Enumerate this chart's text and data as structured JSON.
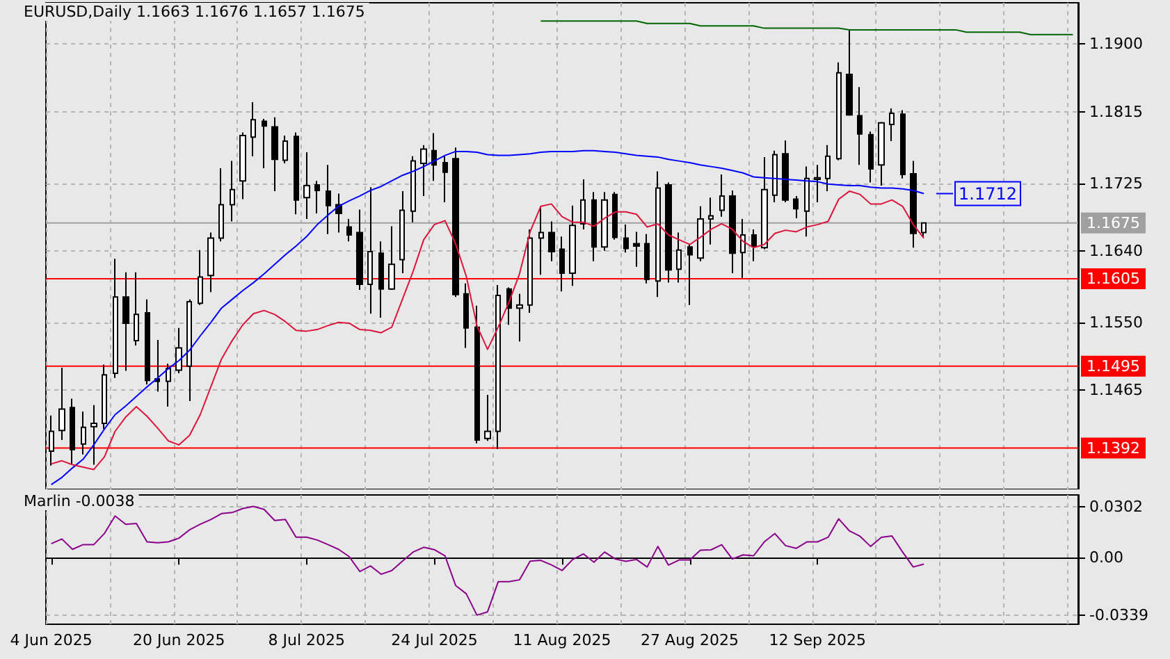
{
  "chart_data": [
    {
      "type": "candlestick",
      "title": "EURUSD,Daily 1.1663 1.1676 1.1657 1.1675",
      "categories": [
        null,
        null,
        null,
        null,
        null,
        null,
        null,
        null,
        null,
        null,
        null,
        null,
        null,
        null,
        null,
        null,
        null,
        null,
        null,
        null,
        null,
        null,
        null,
        null,
        null,
        null,
        null,
        null,
        null,
        null,
        null,
        null,
        null,
        null,
        null,
        null,
        null,
        null,
        null,
        null,
        null,
        null,
        null,
        null,
        null,
        null,
        null,
        null,
        null,
        null,
        null,
        null,
        null,
        null,
        null,
        null,
        null,
        null,
        null,
        null,
        null,
        null,
        null,
        null,
        null,
        null,
        null,
        null,
        null,
        null,
        null,
        null,
        null,
        null,
        null,
        null,
        null,
        null,
        null,
        null,
        null,
        null,
        null,
        null,
        null,
        null,
        null,
        null,
        null,
        null,
        null,
        null,
        null,
        null,
        null,
        null,
        null
      ],
      "ohlc": [
        [
          1.1388,
          1.1433,
          1.137,
          1.1413
        ],
        [
          1.1414,
          1.1493,
          1.1402,
          1.1441
        ],
        [
          1.1443,
          1.1454,
          1.1372,
          1.139
        ],
        [
          1.1397,
          1.1438,
          1.1384,
          1.1418
        ],
        [
          1.1419,
          1.1446,
          1.1371,
          1.1423
        ],
        [
          1.1423,
          1.1497,
          1.1416,
          1.1484
        ],
        [
          1.1486,
          1.163,
          1.148,
          1.1582
        ],
        [
          1.1582,
          1.1613,
          1.1489,
          1.1549
        ],
        [
          1.1527,
          1.1613,
          1.1521,
          1.156
        ],
        [
          1.1562,
          1.1579,
          1.1472,
          1.1477
        ],
        [
          1.1479,
          1.1528,
          1.1463,
          1.1476
        ],
        [
          1.1476,
          1.1498,
          1.1444,
          1.1492
        ],
        [
          1.149,
          1.1543,
          1.1486,
          1.1518
        ],
        [
          1.1495,
          1.1579,
          1.1451,
          1.1576
        ],
        [
          1.1574,
          1.1641,
          1.1572,
          1.1607
        ],
        [
          1.1609,
          1.1663,
          1.1588,
          1.1656
        ],
        [
          1.1656,
          1.1744,
          1.1652,
          1.1698
        ],
        [
          1.1698,
          1.1753,
          1.1677,
          1.1717
        ],
        [
          1.1728,
          1.1789,
          1.1705,
          1.1785
        ],
        [
          1.1783,
          1.1827,
          1.1759,
          1.1805
        ],
        [
          1.1803,
          1.1806,
          1.1744,
          1.1797
        ],
        [
          1.1796,
          1.1808,
          1.1715,
          1.1755
        ],
        [
          1.1754,
          1.1785,
          1.175,
          1.1778
        ],
        [
          1.1784,
          1.1789,
          1.1686,
          1.1704
        ],
        [
          1.1707,
          1.1764,
          1.168,
          1.1722
        ],
        [
          1.1723,
          1.1728,
          1.1687,
          1.1716
        ],
        [
          1.1715,
          1.1748,
          1.1661,
          1.1697
        ],
        [
          1.1698,
          1.1712,
          1.1663,
          1.1687
        ],
        [
          1.167,
          1.168,
          1.1652,
          1.166
        ],
        [
          1.1663,
          1.1692,
          1.1591,
          1.1598
        ],
        [
          1.1598,
          1.172,
          1.1561,
          1.1639
        ],
        [
          1.1637,
          1.1652,
          1.1556,
          1.1592
        ],
        [
          1.1592,
          1.1671,
          1.1591,
          1.1623
        ],
        [
          1.1629,
          1.1715,
          1.1612,
          1.1691
        ],
        [
          1.169,
          1.1759,
          1.1676,
          1.1753
        ],
        [
          1.175,
          1.1773,
          1.1709,
          1.1768
        ],
        [
          1.1766,
          1.1788,
          1.1728,
          1.1748
        ],
        [
          1.1751,
          1.1759,
          1.1701,
          1.1739
        ],
        [
          1.1756,
          1.177,
          1.1582,
          1.1585
        ],
        [
          1.1586,
          1.1599,
          1.1518,
          1.1543
        ],
        [
          1.1544,
          1.1571,
          1.1398,
          1.1402
        ],
        [
          1.1404,
          1.1459,
          1.1401,
          1.1413
        ],
        [
          1.1413,
          1.1597,
          1.1391,
          1.1584
        ],
        [
          1.1592,
          1.1594,
          1.1547,
          1.1568
        ],
        [
          1.1568,
          1.1586,
          1.1526,
          1.1572
        ],
        [
          1.1572,
          1.1667,
          1.1562,
          1.1656
        ],
        [
          1.1656,
          1.1696,
          1.161,
          1.1663
        ],
        [
          1.1663,
          1.1677,
          1.1627,
          1.1639
        ],
        [
          1.1642,
          1.1658,
          1.1589,
          1.1612
        ],
        [
          1.1612,
          1.1697,
          1.1596,
          1.1672
        ],
        [
          1.1674,
          1.173,
          1.1667,
          1.1704
        ],
        [
          1.1704,
          1.1714,
          1.1627,
          1.1645
        ],
        [
          1.1645,
          1.1714,
          1.164,
          1.1704
        ],
        [
          1.1711,
          1.1714,
          1.1654,
          1.1657
        ],
        [
          1.1656,
          1.1673,
          1.1638,
          1.1643
        ],
        [
          1.1649,
          1.1664,
          1.162,
          1.1646
        ],
        [
          1.1649,
          1.1661,
          1.1599,
          1.1604
        ],
        [
          1.1602,
          1.174,
          1.1582,
          1.1719
        ],
        [
          1.1723,
          1.1726,
          1.16,
          1.1616
        ],
        [
          1.1617,
          1.1663,
          1.16,
          1.1641
        ],
        [
          1.1645,
          1.1648,
          1.1572,
          1.1635
        ],
        [
          1.1631,
          1.1696,
          1.1627,
          1.168
        ],
        [
          1.168,
          1.1707,
          1.1648,
          1.1684
        ],
        [
          1.1691,
          1.1736,
          1.1683,
          1.1709
        ],
        [
          1.1709,
          1.1716,
          1.1612,
          1.1637
        ],
        [
          1.1638,
          1.168,
          1.1606,
          1.166
        ],
        [
          1.166,
          1.1667,
          1.1627,
          1.1646
        ],
        [
          1.1644,
          1.1758,
          1.1642,
          1.1717
        ],
        [
          1.171,
          1.1766,
          1.1701,
          1.1761
        ],
        [
          1.1762,
          1.1779,
          1.1701,
          1.1704
        ],
        [
          1.1705,
          1.1709,
          1.1681,
          1.1693
        ],
        [
          1.169,
          1.1746,
          1.1658,
          1.1731
        ],
        [
          1.173,
          1.1748,
          1.1701,
          1.1732
        ],
        [
          1.1731,
          1.1773,
          1.1715,
          1.1759
        ],
        [
          1.1756,
          1.1877,
          1.1754,
          1.1864
        ],
        [
          1.1862,
          1.1918,
          1.181,
          1.1811
        ],
        [
          1.181,
          1.1846,
          1.1748,
          1.1787
        ],
        [
          1.1786,
          1.179,
          1.1726,
          1.1743
        ],
        [
          1.1748,
          1.1802,
          1.1722,
          1.1801
        ],
        [
          1.1799,
          1.1819,
          1.1778,
          1.1813
        ],
        [
          1.1812,
          1.1817,
          1.1731,
          1.1736
        ],
        [
          1.1737,
          1.1753,
          1.1644,
          1.1662
        ],
        [
          1.1663,
          1.1676,
          1.1657,
          1.1675
        ],
        null,
        null,
        null,
        null,
        null,
        null,
        null,
        null,
        null,
        null,
        null,
        null,
        null,
        null
      ],
      "series": [
        {
          "type": "line",
          "color": "#0000ff",
          "values": [
            1.1346,
            1.1355,
            1.1367,
            1.1378,
            1.1396,
            1.1416,
            1.1434,
            1.1445,
            1.1457,
            1.1469,
            1.148,
            1.1492,
            1.1502,
            1.1515,
            1.1533,
            1.155,
            1.1568,
            1.1579,
            1.159,
            1.16,
            1.1611,
            1.1623,
            1.1635,
            1.1646,
            1.1658,
            1.1673,
            1.1685,
            1.1696,
            1.1703,
            1.1709,
            1.1716,
            1.1721,
            1.1728,
            1.1735,
            1.174,
            1.1746,
            1.1753,
            1.176,
            1.1765,
            1.1765,
            1.1764,
            1.1761,
            1.176,
            1.176,
            1.1761,
            1.1762,
            1.1764,
            1.1765,
            1.1765,
            1.1765,
            1.1766,
            1.1766,
            1.1765,
            1.1764,
            1.1762,
            1.176,
            1.1759,
            1.1758,
            1.1755,
            1.1753,
            1.1751,
            1.1748,
            1.1746,
            1.1744,
            1.1741,
            1.1738,
            1.1733,
            1.1732,
            1.1731,
            1.173,
            1.1729,
            1.1728,
            1.1727,
            1.1724,
            1.1723,
            1.1722,
            1.1722,
            1.172,
            1.1719,
            1.1719,
            1.1718,
            1.1716,
            1.1712,
            null,
            null,
            null,
            null,
            null,
            null,
            null,
            null,
            null,
            null,
            null,
            null,
            null,
            null
          ]
        },
        {
          "type": "line",
          "color": "#dc143c",
          "values": [
            1.1372,
            1.1376,
            1.1371,
            1.1368,
            1.1365,
            1.1381,
            1.1413,
            1.1431,
            1.1444,
            1.1432,
            1.1417,
            1.1401,
            1.1396,
            1.1408,
            1.1434,
            1.1469,
            1.1504,
            1.1527,
            1.1547,
            1.1561,
            1.1565,
            1.156,
            1.1551,
            1.154,
            1.1539,
            1.1541,
            1.1546,
            1.155,
            1.1549,
            1.1541,
            1.154,
            1.1537,
            1.1544,
            1.1579,
            1.1614,
            1.1654,
            1.1673,
            1.1678,
            1.1649,
            1.1608,
            1.1546,
            1.1516,
            1.1544,
            1.1575,
            1.1611,
            1.1664,
            1.1696,
            1.1699,
            1.1683,
            1.1676,
            1.1676,
            1.1671,
            1.1681,
            1.1689,
            1.1689,
            1.1686,
            1.167,
            1.1674,
            1.166,
            1.1654,
            1.1648,
            1.1657,
            1.1667,
            1.1674,
            1.1667,
            1.1652,
            1.1644,
            1.1648,
            1.1662,
            1.1666,
            1.1664,
            1.167,
            1.1673,
            1.1677,
            1.1705,
            1.1715,
            1.1711,
            1.1699,
            1.1699,
            1.1704,
            1.1696,
            1.1673,
            1.1656,
            null,
            null,
            null,
            null,
            null,
            null,
            null,
            null,
            null,
            null,
            null,
            null,
            null,
            null
          ]
        },
        {
          "type": "line",
          "color": "#006400",
          "values": [
            null,
            null,
            null,
            null,
            null,
            null,
            null,
            null,
            null,
            null,
            null,
            null,
            null,
            null,
            null,
            null,
            null,
            null,
            null,
            null,
            null,
            null,
            null,
            null,
            null,
            null,
            null,
            null,
            null,
            null,
            null,
            null,
            null,
            null,
            null,
            null,
            null,
            null,
            null,
            null,
            null,
            null,
            null,
            null,
            null,
            null,
            1.1929,
            1.1929,
            1.1929,
            1.1929,
            1.1929,
            1.1929,
            1.1929,
            1.1929,
            1.1929,
            1.1929,
            1.1926,
            1.1926,
            1.1926,
            1.1926,
            1.1926,
            1.1923,
            1.1923,
            1.1923,
            1.1923,
            1.1923,
            1.1923,
            1.192,
            1.192,
            1.192,
            1.192,
            1.192,
            1.192,
            1.192,
            1.192,
            1.1918,
            1.1918,
            1.1918,
            1.1918,
            1.1918,
            1.1918,
            1.1918,
            1.1918,
            1.1918,
            1.1918,
            1.1918,
            1.1915,
            1.1915,
            1.1915,
            1.1915,
            1.1915,
            1.1915,
            1.1912,
            1.1912,
            1.1912,
            1.1912,
            1.1912
          ]
        }
      ],
      "ylim": [
        1.134,
        1.1952
      ],
      "yticks": [
        {
          "value": 1.19,
          "label": "1.1900"
        },
        1.1815,
        1.1725,
        {
          "value": 1.164,
          "label": "1.1640"
        },
        {
          "value": 1.155,
          "label": "1.1550"
        },
        1.1465
      ],
      "ref_lines": [
        {
          "axis": "y",
          "value": 1.1675,
          "label": "1.1675",
          "color": "#a0a0a0"
        },
        {
          "axis": "y",
          "value": 1.1605,
          "label": "1.1605",
          "color": "#ff0000"
        },
        {
          "axis": "y",
          "value": 1.1495,
          "label": "1.1495",
          "color": "#ff0000"
        },
        {
          "axis": "y",
          "value": 1.1392,
          "label": "1.1392",
          "color": "#ff0000"
        }
      ],
      "annotations": [
        "1.1712"
      ],
      "marker": "none",
      "grid": true,
      "tick_labels": "y"
    },
    {
      "type": "line",
      "title": "Marlin -0.0038",
      "categories": [
        "4 Jun 2025",
        null,
        null,
        null,
        null,
        null,
        null,
        null,
        null,
        null,
        null,
        null,
        "20 Jun 2025",
        null,
        null,
        null,
        null,
        null,
        null,
        null,
        null,
        null,
        null,
        null,
        "8 Jul 2025",
        null,
        null,
        null,
        null,
        null,
        null,
        null,
        null,
        null,
        null,
        null,
        "24 Jul 2025",
        null,
        null,
        null,
        null,
        null,
        null,
        null,
        null,
        null,
        null,
        null,
        "11 Aug 2025",
        null,
        null,
        null,
        null,
        null,
        null,
        null,
        null,
        null,
        null,
        null,
        "27 Aug 2025",
        null,
        null,
        null,
        null,
        null,
        null,
        null,
        null,
        null,
        null,
        null,
        "12 Sep 2025",
        null,
        null,
        null,
        null,
        null,
        null,
        null,
        null,
        null,
        null,
        null,
        null,
        null,
        null,
        null,
        null,
        null,
        null,
        null,
        null,
        null,
        null,
        null,
        null
      ],
      "series": [
        {
          "color": "#8b008b",
          "values": [
            0.0082,
            0.011,
            0.0049,
            0.0077,
            0.0077,
            0.0143,
            0.0246,
            0.0197,
            0.0202,
            0.0093,
            0.0088,
            0.0093,
            0.0115,
            0.0164,
            0.0197,
            0.0225,
            0.026,
            0.0266,
            0.029,
            0.0302,
            0.0285,
            0.0219,
            0.0225,
            0.0121,
            0.0121,
            0.0104,
            0.0077,
            0.0049,
            0.0006,
            -0.0082,
            -0.0049,
            -0.0098,
            -0.0076,
            -0.0021,
            0.0033,
            0.0061,
            0.0047,
            0.0011,
            -0.0164,
            -0.0213,
            -0.0339,
            -0.032,
            -0.0142,
            -0.0142,
            -0.0131,
            -0.0021,
            -0.0016,
            -0.0043,
            -0.0076,
            -0.0011,
            0.0022,
            -0.0027,
            0.0033,
            -0.0008,
            -0.0022,
            -0.0011,
            -0.0055,
            0.0066,
            -0.0044,
            -0.0014,
            -0.0014,
            0.0044,
            0.0046,
            0.0076,
            -0.0008,
            0.0016,
            0.0011,
            0.0093,
            0.0142,
            0.0071,
            0.0055,
            0.0093,
            0.0093,
            0.012,
            0.0229,
            0.0158,
            0.0126,
            0.0066,
            0.012,
            0.0128,
            0.0033,
            -0.0055,
            -0.0038,
            null,
            null,
            null,
            null,
            null,
            null,
            null,
            null,
            null,
            null,
            null,
            null,
            null,
            null
          ]
        }
      ],
      "ylim": [
        -0.0393,
        0.037
      ],
      "yticks": [
        0.0302,
        {
          "value": 0,
          "label": "0.00"
        },
        -0.0339
      ],
      "marker": "none",
      "grid": true
    }
  ]
}
